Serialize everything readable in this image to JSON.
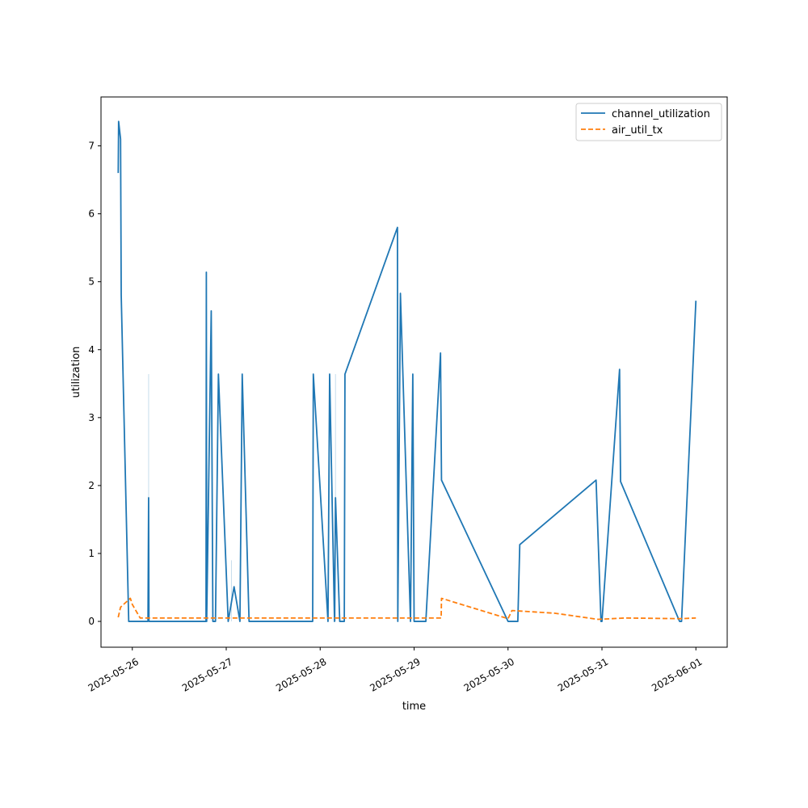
{
  "chart_data": {
    "type": "line",
    "title": "",
    "xlabel": "time",
    "ylabel": "utilization",
    "x_type": "date",
    "xlim": [
      "2025-05-25T16:00",
      "2025-06-01T08:00"
    ],
    "ylim": [
      -0.38,
      7.72
    ],
    "x_ticks": [
      {
        "value": "2025-05-26T00:00",
        "label": "2025-05-26"
      },
      {
        "value": "2025-05-27T00:00",
        "label": "2025-05-27"
      },
      {
        "value": "2025-05-28T00:00",
        "label": "2025-05-28"
      },
      {
        "value": "2025-05-29T00:00",
        "label": "2025-05-29"
      },
      {
        "value": "2025-05-30T00:00",
        "label": "2025-05-30"
      },
      {
        "value": "2025-05-31T00:00",
        "label": "2025-05-31"
      },
      {
        "value": "2025-06-01T00:00",
        "label": "2025-06-01"
      }
    ],
    "y_ticks": [
      0,
      1,
      2,
      3,
      4,
      5,
      6,
      7
    ],
    "grid": false,
    "legend": "top-right",
    "series": [
      {
        "name": "channel_utilization",
        "color": "#1f77b4",
        "dash": "solid",
        "x": [
          "2025-05-25T20:24",
          "2025-05-25T20:30",
          "2025-05-25T21:00",
          "2025-05-25T21:10",
          "2025-05-25T23:05",
          "2025-05-26T04:00",
          "2025-05-26T04:10",
          "2025-05-26T04:15",
          "2025-05-26T18:50",
          "2025-05-26T18:55",
          "2025-05-26T19:00",
          "2025-05-26T20:10",
          "2025-05-26T20:35",
          "2025-05-26T21:15",
          "2025-05-26T22:00",
          "2025-05-27T00:30",
          "2025-05-27T02:00",
          "2025-05-27T03:30",
          "2025-05-27T04:05",
          "2025-05-27T05:50",
          "2025-05-27T22:05",
          "2025-05-27T22:15",
          "2025-05-28T02:00",
          "2025-05-28T02:25",
          "2025-05-28T03:40",
          "2025-05-28T03:55",
          "2025-05-28T05:00",
          "2025-05-28T06:10",
          "2025-05-28T06:20",
          "2025-05-28T19:45",
          "2025-05-28T19:50",
          "2025-05-28T20:30",
          "2025-05-28T23:05",
          "2025-05-28T23:40",
          "2025-05-29T00:00",
          "2025-05-29T01:50",
          "2025-05-29T03:00",
          "2025-05-29T06:45",
          "2025-05-29T07:00",
          "2025-05-30T00:00",
          "2025-05-30T02:30",
          "2025-05-30T03:00",
          "2025-05-30T22:30",
          "2025-05-30T23:45",
          "2025-05-31T00:00",
          "2025-05-31T04:30",
          "2025-05-31T04:45",
          "2025-05-31T19:50",
          "2025-05-31T20:20",
          "2025-06-01T00:00"
        ],
        "values": [
          6.6,
          7.36,
          7.1,
          4.8,
          0.0,
          0.0,
          1.82,
          0.0,
          0.0,
          5.14,
          0.0,
          4.57,
          0.0,
          0.0,
          3.64,
          0.0,
          0.51,
          0.0,
          3.64,
          0.0,
          0.0,
          3.64,
          0.0,
          3.64,
          0.0,
          1.82,
          0.0,
          0.0,
          3.64,
          5.8,
          0.0,
          4.83,
          0.0,
          3.64,
          0.0,
          0.0,
          0.0,
          3.95,
          2.08,
          0.0,
          0.0,
          1.13,
          2.08,
          0.0,
          0.0,
          3.71,
          2.06,
          0.0,
          0.0,
          4.72
        ]
      },
      {
        "name": "air_util_tx",
        "color": "#ff7f0e",
        "dash": "dashed",
        "x": [
          "2025-05-25T20:24",
          "2025-05-25T21:00",
          "2025-05-25T23:30",
          "2025-05-26T00:00",
          "2025-05-26T02:00",
          "2025-05-26T04:00",
          "2025-05-27T12:00",
          "2025-05-28T12:00",
          "2025-05-29T06:55",
          "2025-05-29T07:00",
          "2025-05-30T00:00",
          "2025-05-30T01:00",
          "2025-05-30T12:00",
          "2025-05-30T23:00",
          "2025-05-31T06:00",
          "2025-05-31T20:00",
          "2025-06-01T00:00"
        ],
        "values": [
          0.06,
          0.21,
          0.34,
          0.25,
          0.05,
          0.05,
          0.05,
          0.05,
          0.05,
          0.34,
          0.04,
          0.16,
          0.12,
          0.03,
          0.05,
          0.04,
          0.05
        ]
      }
    ],
    "faint_spikes": [
      {
        "x": "2025-05-26T04:10",
        "value": 3.64
      },
      {
        "x": "2025-05-27T01:20",
        "value": 0.9
      },
      {
        "x": "2025-05-28T03:55",
        "value": 3.64
      }
    ]
  }
}
